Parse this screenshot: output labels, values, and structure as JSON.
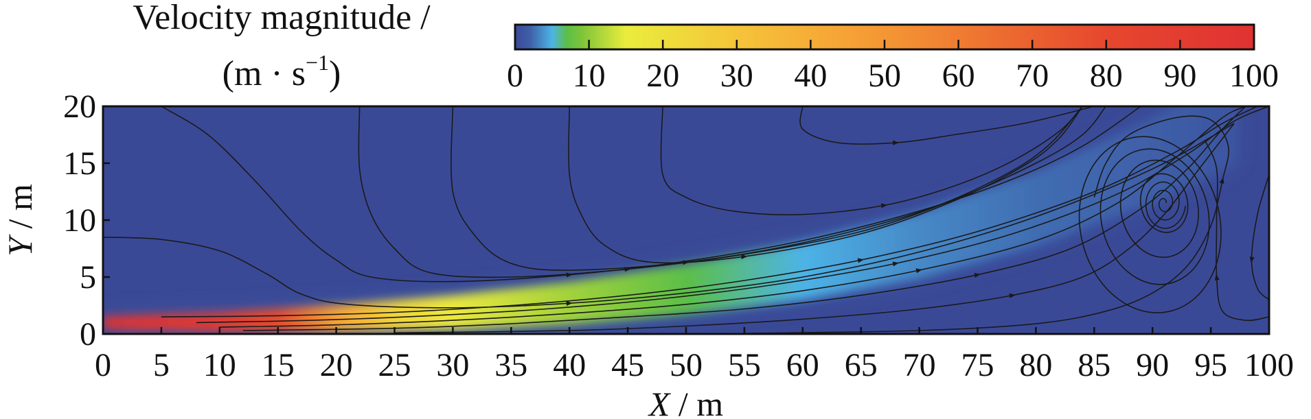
{
  "chart_data": {
    "type": "heatmap",
    "title": "",
    "colorbar": {
      "title_line1": "Velocity magnitude /",
      "title_line2_main": "(m · s",
      "title_line2_sup": "−1",
      "title_line2_close": ")",
      "range": [
        0,
        100
      ],
      "ticks": [
        "0",
        "10",
        "20",
        "30",
        "40",
        "50",
        "60",
        "70",
        "80",
        "90",
        "100"
      ],
      "colors": [
        "#3b4a9a",
        "#3e5fa8",
        "#4db3e6",
        "#5cbf47",
        "#7ec43a",
        "#eaed3c",
        "#f5c43a",
        "#f6a235",
        "#f28a33",
        "#ed6e30",
        "#e6472e",
        "#e03232"
      ],
      "color_stops": [
        0,
        0.02,
        0.05,
        0.07,
        0.09,
        0.15,
        0.3,
        0.45,
        0.55,
        0.65,
        0.8,
        1.0
      ]
    },
    "xlabel_var": "X",
    "xlabel_unit": " / m",
    "ylabel_var": "Y",
    "ylabel_unit": " / m",
    "xlim": [
      0,
      100
    ],
    "ylim": [
      0,
      20
    ],
    "x_ticks": [
      "0",
      "5",
      "10",
      "15",
      "20",
      "25",
      "30",
      "35",
      "40",
      "45",
      "50",
      "55",
      "60",
      "65",
      "70",
      "75",
      "80",
      "85",
      "90",
      "95",
      "100"
    ],
    "y_ticks": [
      "0",
      "5",
      "10",
      "15",
      "20"
    ],
    "background_color": "#3a4996",
    "jet_centerline": [
      [
        0,
        1.0
      ],
      [
        10,
        1.0
      ],
      [
        20,
        1.3
      ],
      [
        30,
        1.8
      ],
      [
        40,
        2.6
      ],
      [
        50,
        3.8
      ],
      [
        60,
        5.4
      ],
      [
        70,
        7.6
      ],
      [
        80,
        10.8
      ],
      [
        90,
        15.0
      ],
      [
        97,
        18.6
      ]
    ],
    "jet_core_speed": [
      [
        0,
        100
      ],
      [
        10,
        92
      ],
      [
        15,
        78
      ],
      [
        20,
        45
      ],
      [
        25,
        24
      ],
      [
        30,
        17
      ],
      [
        40,
        11
      ],
      [
        50,
        7
      ],
      [
        60,
        5
      ],
      [
        70,
        3.5
      ],
      [
        80,
        2.5
      ],
      [
        97,
        1.0
      ]
    ],
    "vortex_center": [
      91,
      11.5
    ],
    "streamlines": [
      [
        [
          0,
          8.5
        ],
        [
          5,
          8.3
        ],
        [
          10,
          7.3
        ],
        [
          14,
          5.3
        ],
        [
          17,
          3.5
        ],
        [
          21,
          2.6
        ],
        [
          30,
          2.3
        ],
        [
          40,
          2.7
        ],
        [
          50,
          3.6
        ],
        [
          60,
          5.0
        ],
        [
          70,
          7.2
        ],
        [
          80,
          10.3
        ],
        [
          90,
          14.5
        ],
        [
          97,
          18.5
        ]
      ],
      [
        [
          5,
          20
        ],
        [
          9,
          17.5
        ],
        [
          13,
          13.5
        ],
        [
          17,
          9.0
        ],
        [
          20,
          6.5
        ],
        [
          23,
          5.0
        ],
        [
          30,
          4.6
        ],
        [
          40,
          5.2
        ],
        [
          50,
          6.4
        ],
        [
          60,
          8.2
        ],
        [
          70,
          10.8
        ],
        [
          78,
          13.6
        ],
        [
          84,
          16.5
        ],
        [
          89,
          20
        ]
      ],
      [
        [
          22,
          20
        ],
        [
          22,
          14.5
        ],
        [
          23,
          10.5
        ],
        [
          25,
          7.5
        ],
        [
          28,
          5.4
        ],
        [
          35,
          5.0
        ],
        [
          45,
          5.7
        ],
        [
          55,
          7.0
        ],
        [
          65,
          9.0
        ],
        [
          73,
          11.8
        ],
        [
          80,
          15.0
        ],
        [
          84,
          17.5
        ],
        [
          86,
          20
        ]
      ],
      [
        [
          30,
          20
        ],
        [
          30,
          12.5
        ],
        [
          32,
          8.5
        ],
        [
          35,
          6.2
        ],
        [
          40,
          5.6
        ],
        [
          50,
          6.3
        ],
        [
          60,
          8.0
        ],
        [
          70,
          10.7
        ],
        [
          77,
          13.8
        ],
        [
          81,
          16.5
        ],
        [
          84,
          20
        ]
      ],
      [
        [
          40,
          20
        ],
        [
          40,
          14
        ],
        [
          41,
          10.5
        ],
        [
          43,
          7.8
        ],
        [
          47,
          6.3
        ],
        [
          55,
          6.8
        ],
        [
          65,
          8.8
        ],
        [
          73,
          11.7
        ],
        [
          79,
          14.8
        ],
        [
          82,
          17.2
        ],
        [
          84,
          20
        ]
      ],
      [
        [
          48,
          20
        ],
        [
          48,
          14
        ],
        [
          50,
          12
        ],
        [
          54,
          10.8
        ],
        [
          60,
          10.5
        ],
        [
          67,
          11.3
        ],
        [
          73,
          13.0
        ],
        [
          78,
          15.2
        ],
        [
          82,
          17.8
        ],
        [
          84,
          20
        ]
      ],
      [
        [
          60,
          20
        ],
        [
          60,
          18
        ],
        [
          63,
          16.8
        ],
        [
          68,
          16.8
        ],
        [
          73,
          17.5
        ],
        [
          79,
          18.5
        ],
        [
          85,
          20
        ]
      ],
      [
        [
          5,
          1.5
        ],
        [
          15,
          1.6
        ],
        [
          25,
          1.9
        ],
        [
          35,
          2.5
        ],
        [
          45,
          3.4
        ],
        [
          55,
          4.7
        ],
        [
          65,
          6.5
        ],
        [
          75,
          9.0
        ],
        [
          85,
          12.5
        ],
        [
          92,
          16.0
        ],
        [
          96,
          18.5
        ],
        [
          99,
          20
        ]
      ],
      [
        [
          8,
          1.0
        ],
        [
          18,
          1.2
        ],
        [
          28,
          1.6
        ],
        [
          38,
          2.2
        ],
        [
          48,
          3.1
        ],
        [
          58,
          4.4
        ],
        [
          68,
          6.2
        ],
        [
          78,
          8.8
        ],
        [
          87,
          12.3
        ],
        [
          93,
          15.8
        ],
        [
          97,
          18.7
        ],
        [
          100,
          20
        ]
      ],
      [
        [
          10,
          0.6
        ],
        [
          20,
          0.8
        ],
        [
          30,
          1.2
        ],
        [
          40,
          1.8
        ],
        [
          50,
          2.6
        ],
        [
          60,
          3.8
        ],
        [
          70,
          5.6
        ],
        [
          80,
          8.2
        ],
        [
          87,
          11.5
        ],
        [
          92,
          15.5
        ],
        [
          96,
          19.0
        ],
        [
          98,
          20
        ]
      ],
      [
        [
          12,
          0.3
        ],
        [
          25,
          0.5
        ],
        [
          35,
          0.9
        ],
        [
          45,
          1.5
        ],
        [
          55,
          2.2
        ],
        [
          65,
          3.4
        ],
        [
          75,
          5.2
        ],
        [
          83,
          7.5
        ],
        [
          89,
          11.0
        ],
        [
          93,
          14.5
        ],
        [
          96,
          18.0
        ],
        [
          98,
          20
        ]
      ],
      [
        [
          25,
          0.1
        ],
        [
          40,
          0.3
        ],
        [
          50,
          0.7
        ],
        [
          60,
          1.3
        ],
        [
          70,
          2.2
        ],
        [
          78,
          3.4
        ],
        [
          84,
          5.0
        ],
        [
          88,
          7.5
        ],
        [
          91,
          10.5
        ],
        [
          94,
          14.5
        ],
        [
          97,
          18.5
        ]
      ],
      [
        [
          55,
          0.05
        ],
        [
          70,
          0.3
        ],
        [
          80,
          0.9
        ],
        [
          86,
          2.0
        ],
        [
          90,
          3.6
        ],
        [
          93,
          6.0
        ],
        [
          95,
          9.5
        ],
        [
          96,
          13.5
        ],
        [
          96.5,
          16.5
        ],
        [
          95,
          18.8
        ],
        [
          92,
          19.0
        ],
        [
          88,
          17.5
        ],
        [
          86,
          15
        ],
        [
          85,
          12
        ]
      ],
      [
        [
          100,
          1.5
        ],
        [
          98,
          1.2
        ],
        [
          96,
          2.0
        ],
        [
          95.5,
          5.0
        ],
        [
          95.5,
          10.0
        ],
        [
          95.5,
          14.5
        ],
        [
          94.5,
          17.0
        ]
      ],
      [
        [
          100,
          14.0
        ],
        [
          99,
          10.5
        ],
        [
          98.5,
          6.5
        ],
        [
          99,
          4.0
        ],
        [
          100,
          3.0
        ]
      ]
    ],
    "vortex_loops": [
      {
        "cx": 91,
        "cy": 11.5,
        "rx": 2.0,
        "ry": 2.6
      },
      {
        "cx": 90.6,
        "cy": 11.0,
        "rx": 3.3,
        "ry": 4.3
      },
      {
        "cx": 90.2,
        "cy": 10.3,
        "rx": 4.6,
        "ry": 6.0
      },
      {
        "cx": 89.8,
        "cy": 9.6,
        "rx": 6.0,
        "ry": 7.8
      }
    ]
  }
}
